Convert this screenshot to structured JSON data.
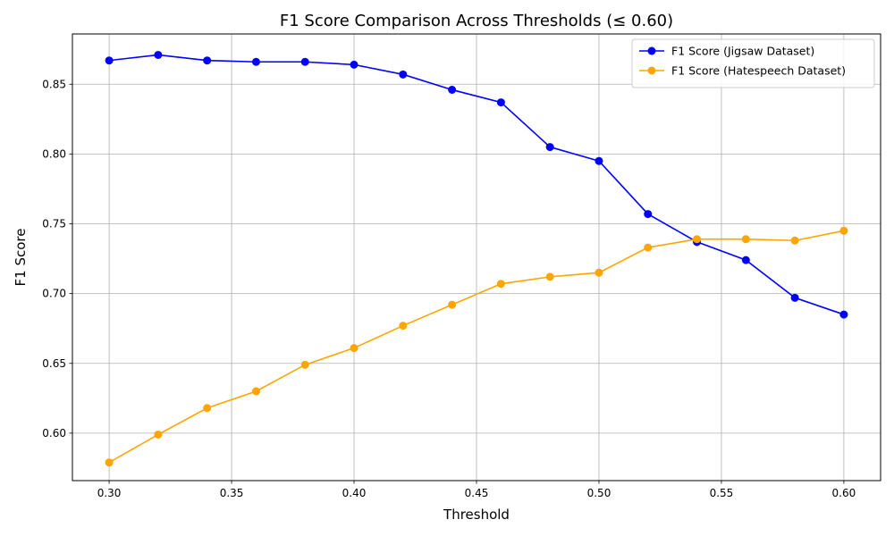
{
  "chart_data": {
    "type": "line",
    "title": "F1 Score Comparison Across Thresholds (≤ 0.60)",
    "xlabel": "Threshold",
    "ylabel": "F1 Score",
    "xlim": [
      0.285,
      0.615
    ],
    "ylim": [
      0.566,
      0.886
    ],
    "xticks": [
      0.3,
      0.35,
      0.4,
      0.45,
      0.5,
      0.55,
      0.6
    ],
    "xtick_labels": [
      "0.30",
      "0.35",
      "0.40",
      "0.45",
      "0.50",
      "0.55",
      "0.60"
    ],
    "yticks": [
      0.6,
      0.65,
      0.7,
      0.75,
      0.8,
      0.85
    ],
    "ytick_labels": [
      "0.60",
      "0.65",
      "0.70",
      "0.75",
      "0.80",
      "0.85"
    ],
    "grid": true,
    "legend_position": "top-right",
    "x": [
      0.3,
      0.32,
      0.34,
      0.36,
      0.38,
      0.4,
      0.42,
      0.44,
      0.46,
      0.48,
      0.5,
      0.52,
      0.54,
      0.56,
      0.58,
      0.6
    ],
    "series": [
      {
        "name": "F1 Score (Jigsaw Dataset)",
        "color": "#0000ff",
        "values": [
          0.867,
          0.871,
          0.867,
          0.866,
          0.866,
          0.864,
          0.857,
          0.846,
          0.837,
          0.805,
          0.795,
          0.757,
          0.737,
          0.724,
          0.697,
          0.685
        ]
      },
      {
        "name": "F1 Score (Hatespeech Dataset)",
        "color": "#ffa500",
        "values": [
          0.579,
          0.599,
          0.618,
          0.63,
          0.649,
          0.661,
          0.677,
          0.692,
          0.707,
          0.712,
          0.715,
          0.733,
          0.739,
          0.739,
          0.738,
          0.745
        ]
      }
    ]
  }
}
